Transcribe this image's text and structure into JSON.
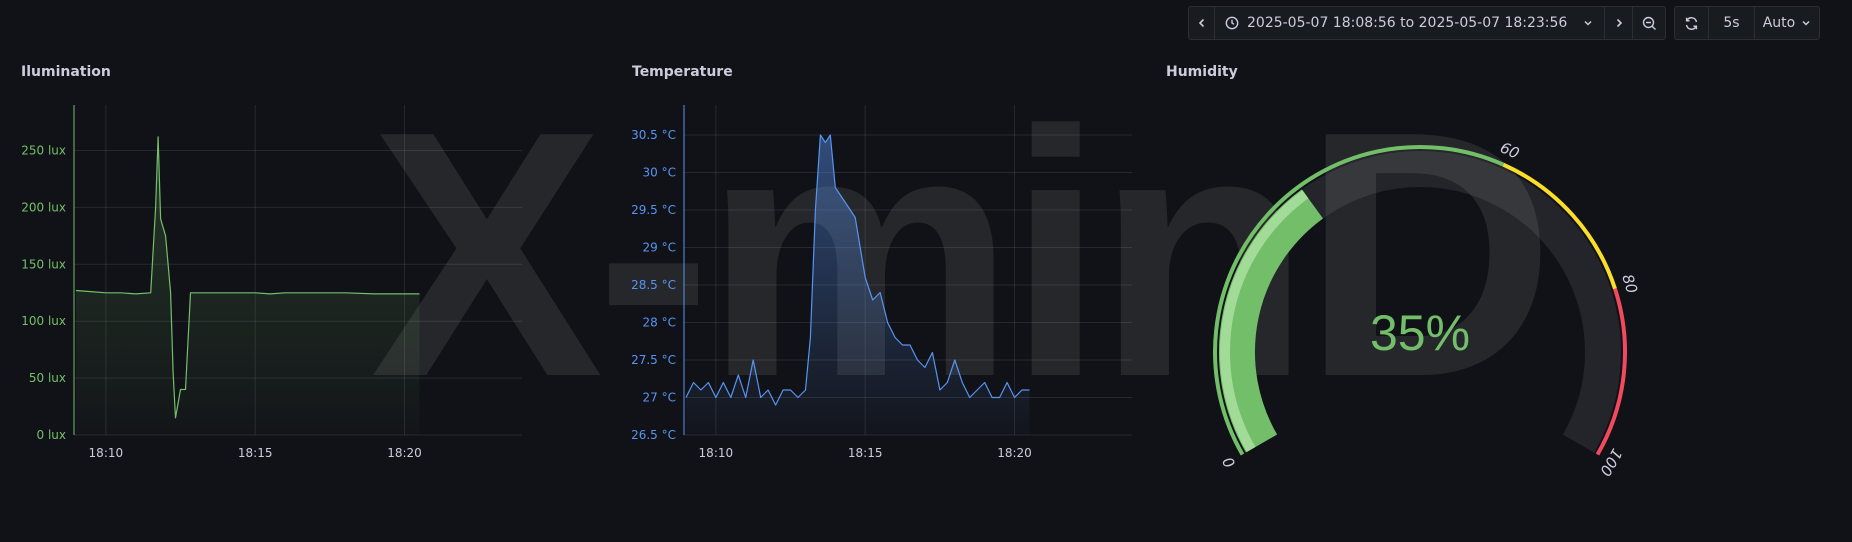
{
  "watermark": "X-minD",
  "toolbar": {
    "time_range": "2025-05-07 18:08:56 to 2025-05-07 18:23:56",
    "refresh_interval": "5s",
    "auto_label": "Auto"
  },
  "panels": [
    {
      "title": "Ilumination"
    },
    {
      "title": "Temperature"
    },
    {
      "title": "Humidity"
    }
  ],
  "colors": {
    "green": "#73bf69",
    "blue": "#5794f2",
    "yellow": "#fade2a",
    "red": "#f2495c"
  },
  "chart_data": [
    {
      "type": "area",
      "title": "Ilumination",
      "unit": "lux",
      "x": [
        "18:09:00",
        "18:09:30",
        "18:10:00",
        "18:10:30",
        "18:11:00",
        "18:11:30",
        "18:11:40",
        "18:11:45",
        "18:11:50",
        "18:12:00",
        "18:12:10",
        "18:12:15",
        "18:12:20",
        "18:12:30",
        "18:12:40",
        "18:12:50",
        "18:13:00",
        "18:13:30",
        "18:14:00",
        "18:15:00",
        "18:15:30",
        "18:16:00",
        "18:17:00",
        "18:18:00",
        "18:19:00",
        "18:20:00",
        "18:20:30"
      ],
      "y": [
        127,
        126,
        125,
        125,
        124,
        125,
        200,
        262,
        190,
        175,
        125,
        55,
        15,
        40,
        40,
        125,
        125,
        125,
        125,
        125,
        124,
        125,
        125,
        125,
        124,
        124,
        124
      ],
      "x_ticks": [
        "18:10",
        "18:15",
        "18:20"
      ],
      "y_ticks": [
        "0 lux",
        "50 lux",
        "100 lux",
        "150 lux",
        "200 lux",
        "250 lux"
      ],
      "ylim": [
        0,
        290
      ],
      "grid": true
    },
    {
      "type": "area",
      "title": "Temperature",
      "unit": "°C",
      "x": [
        "18:09:00",
        "18:09:15",
        "18:09:30",
        "18:09:45",
        "18:10:00",
        "18:10:15",
        "18:10:30",
        "18:10:45",
        "18:11:00",
        "18:11:15",
        "18:11:30",
        "18:11:45",
        "18:12:00",
        "18:12:15",
        "18:12:30",
        "18:12:45",
        "18:13:00",
        "18:13:10",
        "18:13:20",
        "18:13:30",
        "18:13:40",
        "18:13:50",
        "18:14:00",
        "18:14:10",
        "18:14:20",
        "18:14:30",
        "18:14:40",
        "18:15:00",
        "18:15:15",
        "18:15:30",
        "18:15:45",
        "18:16:00",
        "18:16:15",
        "18:16:30",
        "18:16:45",
        "18:17:00",
        "18:17:15",
        "18:17:30",
        "18:17:45",
        "18:18:00",
        "18:18:15",
        "18:18:30",
        "18:18:45",
        "18:19:00",
        "18:19:15",
        "18:19:30",
        "18:19:45",
        "18:20:00",
        "18:20:15",
        "18:20:30"
      ],
      "y": [
        27.0,
        27.2,
        27.1,
        27.2,
        27.0,
        27.2,
        27.0,
        27.3,
        27.0,
        27.5,
        27.0,
        27.1,
        26.9,
        27.1,
        27.1,
        27.0,
        27.1,
        27.8,
        29.5,
        30.5,
        30.4,
        30.5,
        29.8,
        29.7,
        29.6,
        29.5,
        29.4,
        28.6,
        28.3,
        28.4,
        28.0,
        27.8,
        27.7,
        27.7,
        27.5,
        27.4,
        27.6,
        27.1,
        27.2,
        27.5,
        27.2,
        27.0,
        27.1,
        27.2,
        27.0,
        27.0,
        27.2,
        27.0,
        27.1,
        27.1
      ],
      "x_ticks": [
        "18:10",
        "18:15",
        "18:20"
      ],
      "y_ticks": [
        "26.5 °C",
        "27 °C",
        "27.5 °C",
        "28 °C",
        "28.5 °C",
        "29 °C",
        "29.5 °C",
        "30 °C",
        "30.5 °C"
      ],
      "ylim": [
        26.5,
        30.9
      ],
      "grid": true
    },
    {
      "type": "gauge",
      "title": "Humidity",
      "value": 35,
      "value_label": "35%",
      "min": 0,
      "max": 100,
      "thresholds": [
        {
          "from": 0,
          "to": 60,
          "color": "green"
        },
        {
          "from": 60,
          "to": 80,
          "color": "yellow"
        },
        {
          "from": 80,
          "to": 100,
          "color": "red"
        }
      ],
      "ticks": [
        "0",
        "60",
        "80",
        "100"
      ]
    }
  ]
}
